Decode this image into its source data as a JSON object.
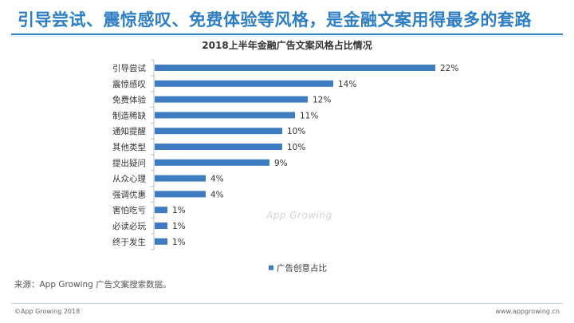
{
  "header": {
    "title": "引导尝试、震惊感叹、免费体验等风格，是金融文案用得最多的套路"
  },
  "chart_data": {
    "type": "bar",
    "orientation": "horizontal",
    "title": "2018上半年金融广告文案风格占比情况",
    "categories": [
      "引导尝试",
      "震惊感叹",
      "免费体验",
      "制造稀缺",
      "通知提醒",
      "其他类型",
      "提出疑问",
      "从众心理",
      "强调优惠",
      "害怕吃亏",
      "必读必玩",
      "终于发生"
    ],
    "series": [
      {
        "name": "广告创意占比",
        "values": [
          22,
          14,
          12,
          11,
          10,
          10,
          9,
          4,
          4,
          1,
          1,
          1
        ]
      }
    ],
    "value_labels": [
      "22%",
      "14%",
      "12%",
      "11%",
      "10%",
      "10%",
      "9%",
      "4%",
      "4%",
      "1%",
      "1%",
      "1%"
    ],
    "xlim": [
      0,
      22
    ],
    "grid": false,
    "legend_position": "bottom",
    "bar_color": "#3d7cc0"
  },
  "source_note": "来源：App Growing 广告文案搜索数据。",
  "watermark": "App Growing",
  "footer": {
    "left": "©App Growing 2018",
    "right": "www.appgrowing.cn"
  },
  "colors": {
    "accent": "#2e7ec4",
    "bar": "#3d7cc0"
  }
}
